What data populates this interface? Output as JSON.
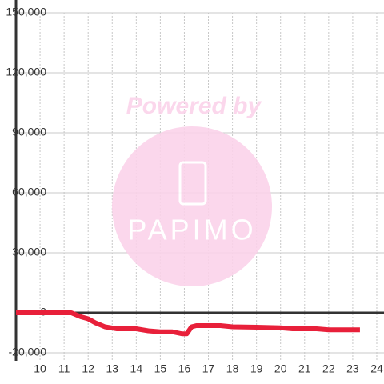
{
  "chart_data": {
    "type": "line",
    "watermark": {
      "text": "Powered by",
      "logo": "PAPIMO"
    },
    "x": [
      9,
      11.3,
      11.7,
      12,
      12.3,
      12.7,
      13.2,
      14,
      14.5,
      15,
      15.5,
      15.9,
      16.1,
      16.3,
      16.5,
      17.5,
      18,
      19,
      20,
      20.5,
      21.5,
      22,
      23.3
    ],
    "series": [
      {
        "color": "#e8203a",
        "values": [
          0,
          0,
          -2000,
          -3000,
          -5000,
          -7000,
          -8000,
          -8000,
          -9000,
          -9500,
          -9500,
          -10500,
          -10500,
          -7000,
          -6400,
          -6400,
          -7000,
          -7200,
          -7500,
          -8000,
          -8000,
          -8500,
          -8500
        ]
      }
    ],
    "xlim": [
      9,
      24.3
    ],
    "xticks": [
      10,
      11,
      12,
      13,
      14,
      15,
      16,
      17,
      18,
      19,
      20,
      21,
      22,
      23,
      24
    ],
    "ylim": [
      -24000,
      150000
    ],
    "yticks": [
      {
        "value": -20000,
        "label": "-20,000"
      },
      0,
      {
        "value": 30000,
        "label": "30,000"
      },
      {
        "value": 60000,
        "label": "60,000"
      },
      {
        "value": 90000,
        "label": "90,000"
      },
      {
        "value": 120000,
        "label": "120,000"
      },
      {
        "value": 150000,
        "label": "150,000"
      }
    ],
    "grid": true
  }
}
